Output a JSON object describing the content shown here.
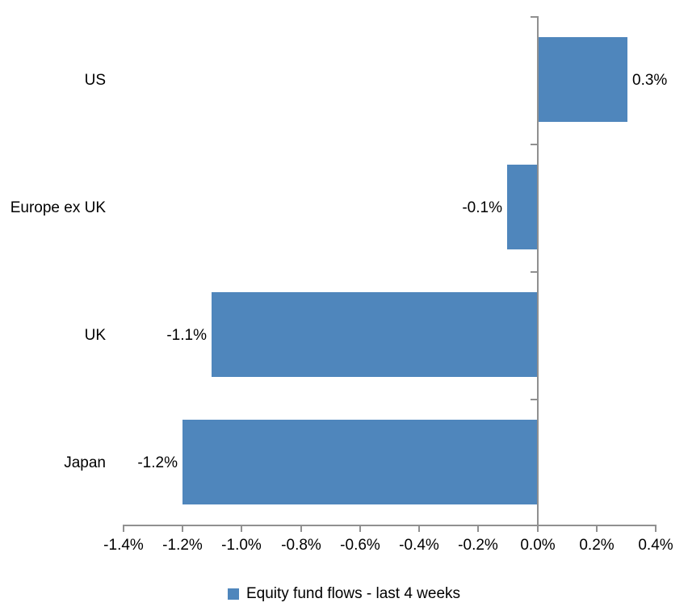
{
  "chart_data": {
    "type": "bar",
    "orientation": "horizontal",
    "title": "",
    "categories": [
      "US",
      "Europe ex UK",
      "UK",
      "Japan"
    ],
    "values": [
      0.3,
      -0.1,
      -1.1,
      -1.2
    ],
    "value_labels": [
      "0.3%",
      "-0.1%",
      "-1.1%",
      "-1.2%"
    ],
    "series": [
      {
        "name": "Equity fund flows - last 4 weeks",
        "values": [
          0.3,
          -0.1,
          -1.1,
          -1.2
        ]
      }
    ],
    "xlabel": "",
    "ylabel": "",
    "xlim": [
      -1.4,
      0.4
    ],
    "x_tick_values": [
      -1.4,
      -1.2,
      -1.0,
      -0.8,
      -0.6,
      -0.4,
      -0.2,
      0.0,
      0.2,
      0.4
    ],
    "x_tick_labels": [
      "-1.4%",
      "-1.2%",
      "-1.0%",
      "-0.8%",
      "-0.6%",
      "-0.4%",
      "-0.2%",
      "0.0%",
      "0.2%",
      "0.4%"
    ],
    "grid": "off",
    "data_labels": "outside-end",
    "legend_position": "bottom",
    "bar_color": "#4F86BC",
    "axis_color": "#909090",
    "label_color": "#000000",
    "background_color": "#FFFFFF"
  },
  "legend": {
    "label": "Equity fund flows - last 4 weeks",
    "marker_color": "#4F86BC"
  }
}
